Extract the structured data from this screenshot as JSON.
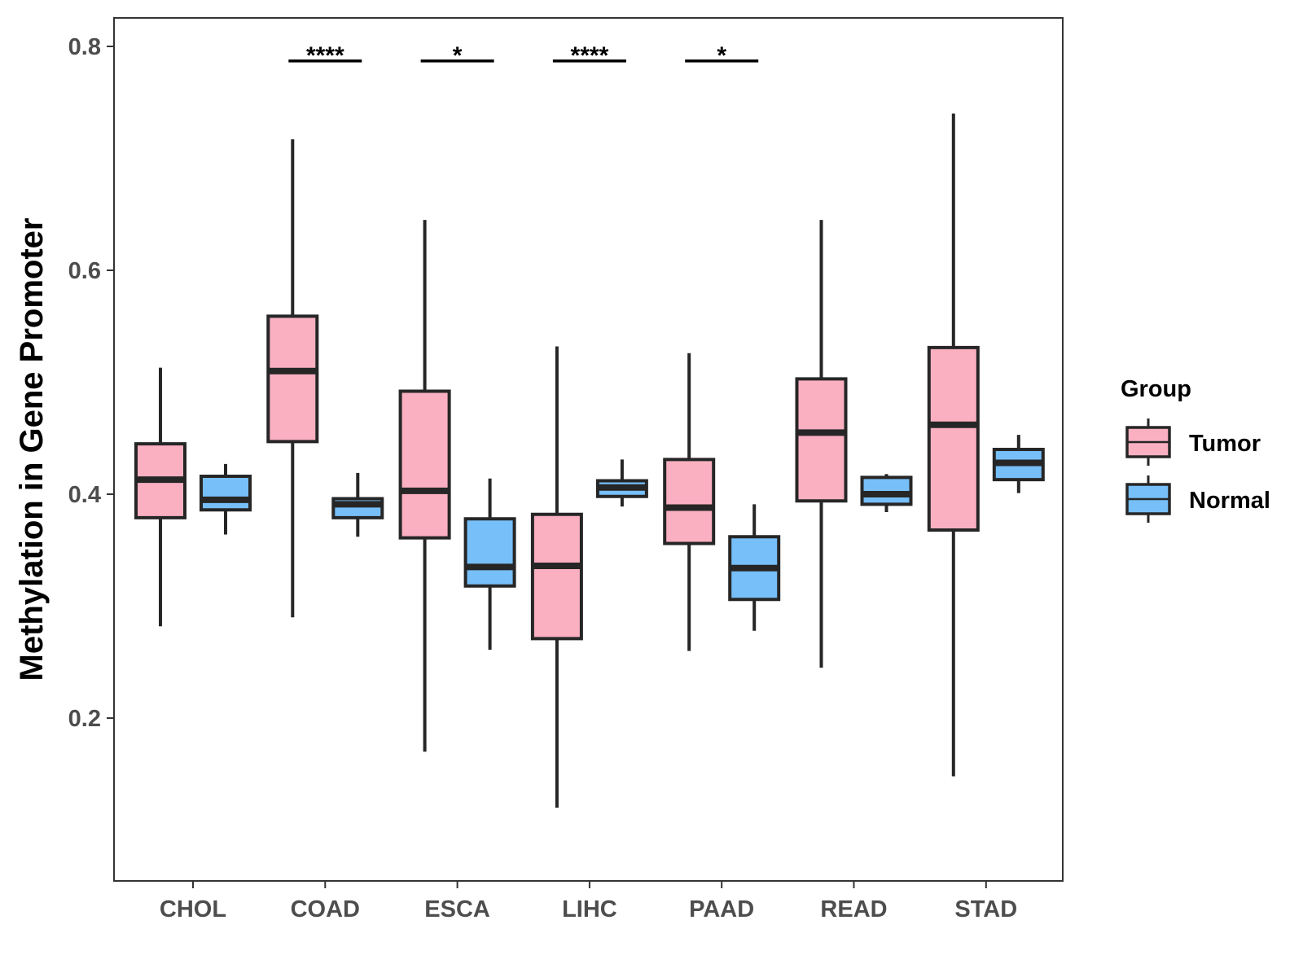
{
  "chart_data": {
    "type": "boxplot",
    "ylabel": "Methylation in Gene Promoter",
    "xlabel": "",
    "ylim": [
      0.05,
      0.825
    ],
    "yticks": [
      0.2,
      0.4,
      0.6,
      0.8
    ],
    "ytick_labels": [
      "0.2",
      "0.4",
      "0.6",
      "0.8"
    ],
    "categories": [
      "CHOL",
      "COAD",
      "ESCA",
      "LIHC",
      "PAAD",
      "READ",
      "STAD"
    ],
    "legend": {
      "title": "Group",
      "position": "right",
      "entries": [
        {
          "name": "Tumor",
          "color": "#FBB0C2"
        },
        {
          "name": "Normal",
          "color": "#77BFF8"
        }
      ]
    },
    "series": [
      {
        "name": "Tumor",
        "color": "#FBB0C2",
        "boxes": [
          {
            "min": 0.282,
            "q1": 0.379,
            "median": 0.413,
            "q3": 0.445,
            "max": 0.513
          },
          {
            "min": 0.29,
            "q1": 0.447,
            "median": 0.51,
            "q3": 0.559,
            "max": 0.717
          },
          {
            "min": 0.17,
            "q1": 0.361,
            "median": 0.403,
            "q3": 0.492,
            "max": 0.645
          },
          {
            "min": 0.12,
            "q1": 0.271,
            "median": 0.336,
            "q3": 0.382,
            "max": 0.532
          },
          {
            "min": 0.26,
            "q1": 0.356,
            "median": 0.388,
            "q3": 0.431,
            "max": 0.526
          },
          {
            "min": 0.245,
            "q1": 0.394,
            "median": 0.455,
            "q3": 0.503,
            "max": 0.645
          },
          {
            "min": 0.148,
            "q1": 0.368,
            "median": 0.462,
            "q3": 0.531,
            "max": 0.74
          }
        ]
      },
      {
        "name": "Normal",
        "color": "#77BFF8",
        "boxes": [
          {
            "min": 0.364,
            "q1": 0.386,
            "median": 0.395,
            "q3": 0.416,
            "max": 0.427
          },
          {
            "min": 0.362,
            "q1": 0.379,
            "median": 0.391,
            "q3": 0.396,
            "max": 0.419
          },
          {
            "min": 0.261,
            "q1": 0.318,
            "median": 0.335,
            "q3": 0.378,
            "max": 0.414
          },
          {
            "min": 0.389,
            "q1": 0.398,
            "median": 0.406,
            "q3": 0.412,
            "max": 0.431
          },
          {
            "min": 0.278,
            "q1": 0.306,
            "median": 0.334,
            "q3": 0.362,
            "max": 0.391
          },
          {
            "min": 0.384,
            "q1": 0.391,
            "median": 0.4,
            "q3": 0.415,
            "max": 0.418
          },
          {
            "min": 0.401,
            "q1": 0.413,
            "median": 0.428,
            "q3": 0.44,
            "max": 0.453
          }
        ]
      }
    ],
    "significance": [
      {
        "category": "COAD",
        "label": "****",
        "y": 0.787
      },
      {
        "category": "ESCA",
        "label": "*",
        "y": 0.787
      },
      {
        "category": "LIHC",
        "label": "****",
        "y": 0.787
      },
      {
        "category": "PAAD",
        "label": "*",
        "y": 0.787
      }
    ]
  }
}
